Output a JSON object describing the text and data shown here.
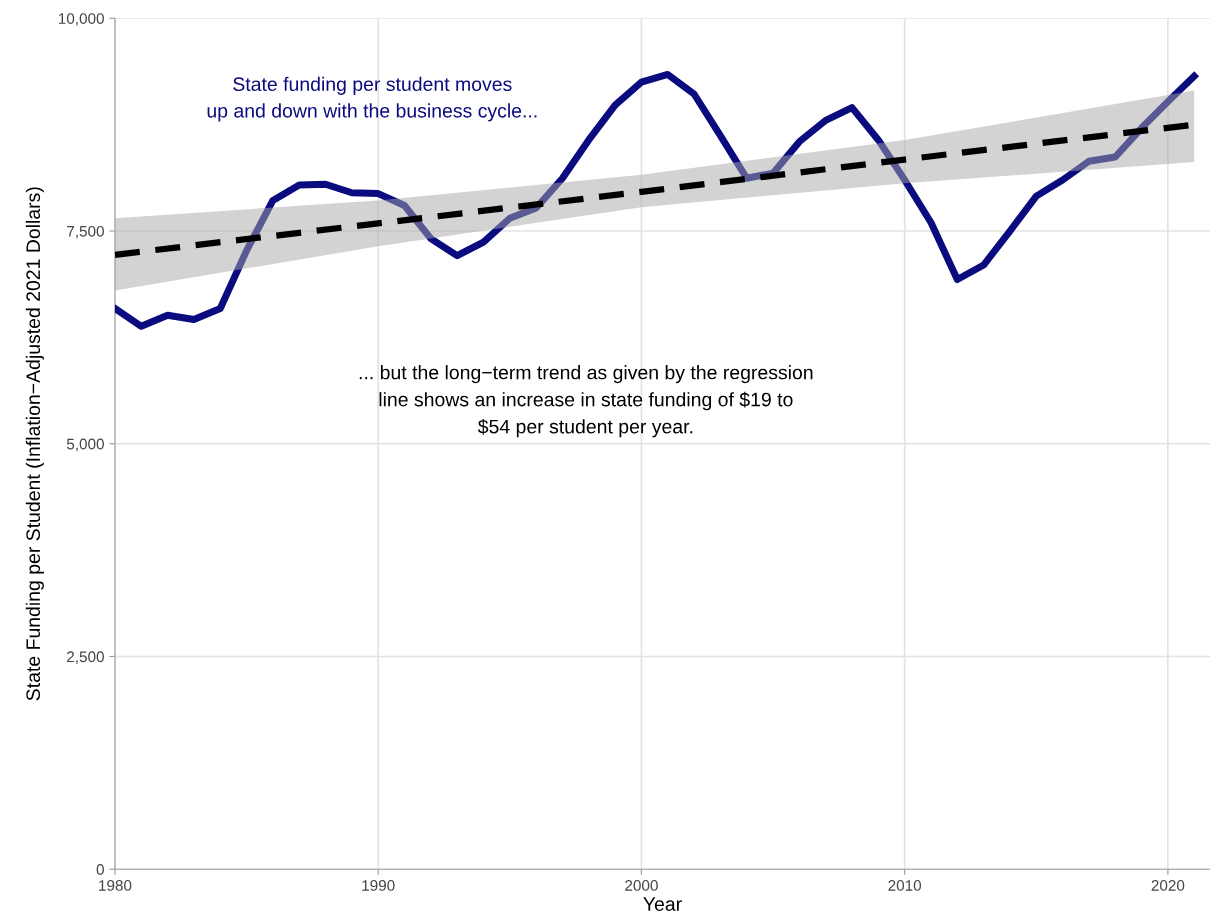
{
  "chart_data": {
    "type": "line",
    "xlabel": "Year",
    "ylabel": "State Funding per Student (Inflation−Adjusted 2021 Dollars)",
    "annotations": [
      "State funding per student moves\nup and down with the business cycle...",
      "... but the long−term trend as given by the regression\nline shows an increase in state funding of $19 to\n$54 per student per year."
    ],
    "x": [
      1980,
      1981,
      1982,
      1983,
      1984,
      1985,
      1986,
      1987,
      1988,
      1989,
      1990,
      1991,
      1992,
      1993,
      1994,
      1995,
      1996,
      1997,
      1998,
      1999,
      2000,
      2001,
      2002,
      2003,
      2004,
      2005,
      2006,
      2007,
      2008,
      2009,
      2010,
      2011,
      2012,
      2013,
      2014,
      2015,
      2016,
      2017,
      2018,
      2019,
      2020,
      2021
    ],
    "series": [
      {
        "color": "#0b0b80",
        "values": [
          6590,
          6380,
          6510,
          6460,
          6590,
          7270,
          7860,
          8040,
          8050,
          7950,
          7940,
          7800,
          7410,
          7210,
          7370,
          7650,
          7770,
          8120,
          8570,
          8980,
          9250,
          9340,
          9110,
          8620,
          8120,
          8180,
          8550,
          8800,
          8950,
          8570,
          8100,
          7600,
          6930,
          7100,
          7500,
          7910,
          8100,
          8320,
          8370,
          8710,
          9020,
          9320
        ]
      },
      {
        "color": "#000000",
        "line_style": "dashed",
        "x": [
          1980,
          1990,
          2000,
          2010,
          2021
        ],
        "values": [
          7220,
          7590,
          7960,
          8340,
          8750
        ],
        "lower": [
          6800,
          7320,
          7780,
          8060,
          8310
        ],
        "upper": [
          7650,
          7860,
          8160,
          8570,
          9150
        ]
      }
    ],
    "xlim": [
      1980,
      2021.6
    ],
    "ylim": [
      0,
      10000
    ],
    "xticks": [
      1980,
      1990,
      2000,
      2010,
      2020
    ],
    "yticks": [
      0,
      {
        "value": 2500,
        "label": "2,500"
      },
      {
        "value": 5000,
        "label": "5,000"
      },
      {
        "value": 7500,
        "label": "7,500"
      },
      {
        "value": 10000,
        "label": "10,000"
      }
    ],
    "grid": true,
    "legend": false
  }
}
